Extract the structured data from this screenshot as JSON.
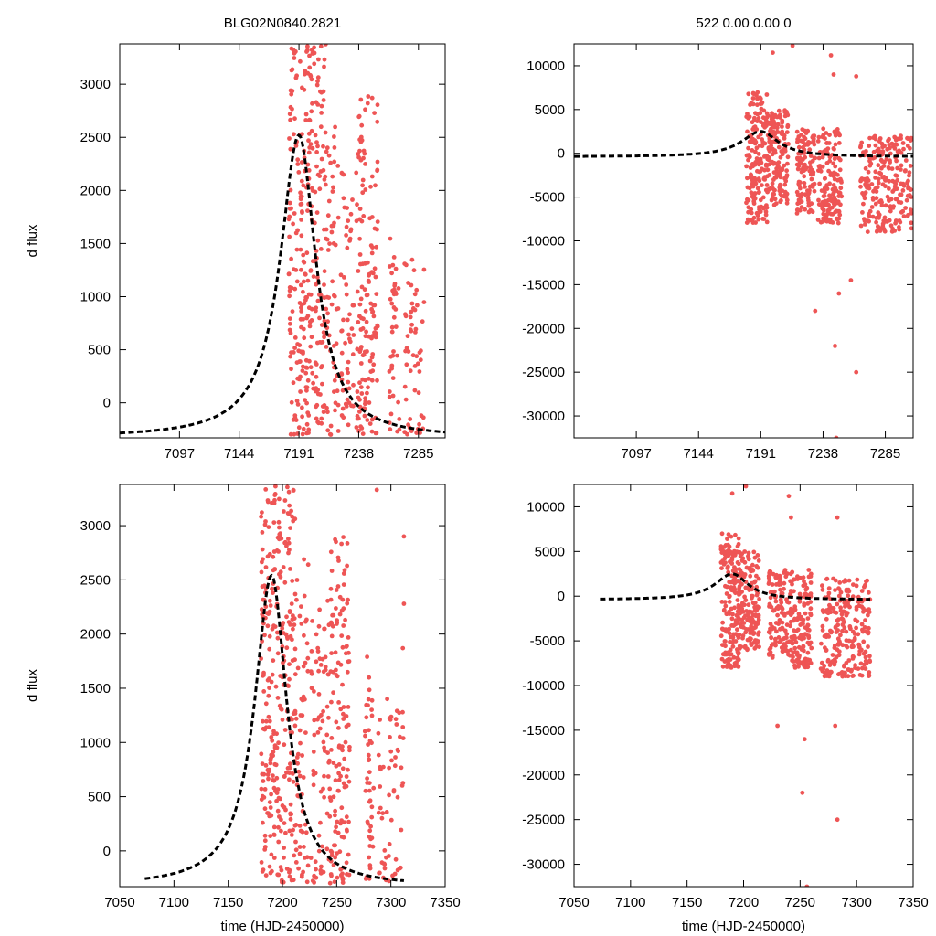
{
  "chart_data": [
    {
      "type": "scatter",
      "title": "BLG02N0840.2821",
      "xlabel": "",
      "ylabel": "d flux",
      "xlim": [
        7050,
        7306
      ],
      "ylim": [
        -330,
        3380
      ],
      "xticks": [
        "7097",
        "7144",
        "7191",
        "7238",
        "7285"
      ],
      "yticks": [
        "0",
        "500",
        "1000",
        "1500",
        "2000",
        "2500",
        "3000"
      ],
      "series": [
        {
          "name": "data",
          "kind": "points",
          "clusters": [
            {
              "x0": 7183,
              "x1": 7198,
              "y0": -300,
              "y1": 3380,
              "n": 160
            },
            {
              "x0": 7198,
              "x1": 7212,
              "y0": -300,
              "y1": 3380,
              "n": 140
            },
            {
              "x0": 7212,
              "x1": 7222,
              "y0": -300,
              "y1": 2600,
              "n": 60
            },
            {
              "x0": 7224,
              "x1": 7234,
              "y0": -300,
              "y1": 2200,
              "n": 55
            },
            {
              "x0": 7236,
              "x1": 7253,
              "y0": -300,
              "y1": 2900,
              "n": 150
            },
            {
              "x0": 7262,
              "x1": 7270,
              "y0": -300,
              "y1": 1800,
              "n": 40
            },
            {
              "x0": 7274,
              "x1": 7290,
              "y0": -300,
              "y1": 1450,
              "n": 55
            }
          ]
        },
        {
          "name": "model",
          "kind": "line",
          "peak_x": 7191,
          "peak_y": 2520,
          "base_y": -330,
          "rise_width": 18,
          "fall_width": 16
        }
      ]
    },
    {
      "type": "scatter",
      "title": "522  0.00  0.00  0",
      "xlabel": "",
      "ylabel": "",
      "xlim": [
        7050,
        7306
      ],
      "ylim": [
        -32500,
        12500
      ],
      "xticks": [
        "7097",
        "7144",
        "7191",
        "7238",
        "7285"
      ],
      "yticks": [
        "10000",
        "5000",
        "0",
        "-5000",
        "-10000",
        "-15000",
        "-20000",
        "-25000",
        "-30000"
      ],
      "series": [
        {
          "name": "data",
          "kind": "points",
          "clusters": [
            {
              "x0": 7180,
              "x1": 7196,
              "y0": -8000,
              "y1": 7000,
              "n": 170
            },
            {
              "x0": 7196,
              "x1": 7212,
              "y0": -6000,
              "y1": 5000,
              "n": 150
            },
            {
              "x0": 7218,
              "x1": 7232,
              "y0": -7000,
              "y1": 3000,
              "n": 110
            },
            {
              "x0": 7234,
              "x1": 7252,
              "y0": -8000,
              "y1": 3000,
              "n": 150
            },
            {
              "x0": 7266,
              "x1": 7306,
              "y0": -9000,
              "y1": 2000,
              "n": 230
            }
          ]
        },
        {
          "name": "outliers",
          "kind": "points",
          "points": [
            [
              7200,
              11500
            ],
            [
              7215,
              12300
            ],
            [
              7244,
              11200
            ],
            [
              7246,
              9000
            ],
            [
              7263,
              8800
            ],
            [
              7232,
              -18000
            ],
            [
              7247,
              -22000
            ],
            [
              7250,
              -16000
            ],
            [
              7248,
              -32500
            ],
            [
              7263,
              -25000
            ],
            [
              7259,
              -14500
            ]
          ]
        },
        {
          "name": "model",
          "kind": "line",
          "peak_x": 7191,
          "peak_y": 2500,
          "base_y": -400,
          "rise_width": 18,
          "fall_width": 16
        }
      ]
    },
    {
      "type": "scatter",
      "title": "",
      "xlabel": "time (HJD-2450000)",
      "ylabel": "d flux",
      "xlim": [
        7050,
        7350
      ],
      "ylim": [
        -330,
        3380
      ],
      "xticks": [
        "7050",
        "7100",
        "7150",
        "7200",
        "7250",
        "7300",
        "7350"
      ],
      "yticks": [
        "0",
        "500",
        "1000",
        "1500",
        "2000",
        "2500",
        "3000"
      ],
      "series": [
        {
          "name": "data",
          "kind": "points",
          "clusters": [
            {
              "x0": 7180,
              "x1": 7196,
              "y0": -300,
              "y1": 3380,
              "n": 160
            },
            {
              "x0": 7196,
              "x1": 7212,
              "y0": -300,
              "y1": 3380,
              "n": 140
            },
            {
              "x0": 7212,
              "x1": 7224,
              "y0": -300,
              "y1": 2700,
              "n": 60
            },
            {
              "x0": 7226,
              "x1": 7240,
              "y0": -300,
              "y1": 2300,
              "n": 60
            },
            {
              "x0": 7241,
              "x1": 7262,
              "y0": -300,
              "y1": 2900,
              "n": 160
            },
            {
              "x0": 7276,
              "x1": 7284,
              "y0": -300,
              "y1": 1800,
              "n": 45
            },
            {
              "x0": 7288,
              "x1": 7312,
              "y0": -300,
              "y1": 1450,
              "n": 60
            }
          ]
        },
        {
          "name": "outliers",
          "kind": "points",
          "points": [
            [
              7287,
              3330
            ],
            [
              7312,
              2900
            ],
            [
              7312,
              2280
            ],
            [
              7311,
              1870
            ]
          ]
        },
        {
          "name": "model",
          "kind": "line",
          "peak_x": 7190,
          "peak_y": 2540,
          "base_y": -330,
          "rise_width": 19,
          "fall_width": 17,
          "x_start": 7073,
          "x_end": 7312
        }
      ]
    },
    {
      "type": "scatter",
      "title": "",
      "xlabel": "time (HJD-2450000)",
      "ylabel": "",
      "xlim": [
        7050,
        7350
      ],
      "ylim": [
        -32500,
        12500
      ],
      "xticks": [
        "7050",
        "7100",
        "7150",
        "7200",
        "7250",
        "7300",
        "7350"
      ],
      "yticks": [
        "10000",
        "5000",
        "0",
        "-5000",
        "-10000",
        "-15000",
        "-20000",
        "-25000",
        "-30000"
      ],
      "series": [
        {
          "name": "data",
          "kind": "points",
          "clusters": [
            {
              "x0": 7180,
              "x1": 7196,
              "y0": -8000,
              "y1": 7000,
              "n": 170
            },
            {
              "x0": 7196,
              "x1": 7214,
              "y0": -6000,
              "y1": 5000,
              "n": 150
            },
            {
              "x0": 7222,
              "x1": 7240,
              "y0": -7000,
              "y1": 3000,
              "n": 110
            },
            {
              "x0": 7240,
              "x1": 7260,
              "y0": -8000,
              "y1": 3000,
              "n": 150
            },
            {
              "x0": 7268,
              "x1": 7312,
              "y0": -9000,
              "y1": 2000,
              "n": 230
            }
          ]
        },
        {
          "name": "outliers",
          "kind": "points",
          "points": [
            [
              7190,
              11500
            ],
            [
              7202,
              12300
            ],
            [
              7240,
              11200
            ],
            [
              7242,
              8800
            ],
            [
              7283,
              8800
            ],
            [
              7230,
              -14500
            ],
            [
              7252,
              -22000
            ],
            [
              7254,
              -16000
            ],
            [
              7256,
              -32500
            ],
            [
              7283,
              -25000
            ],
            [
              7281,
              -14500
            ]
          ]
        },
        {
          "name": "model",
          "kind": "line",
          "peak_x": 7190,
          "peak_y": 2500,
          "base_y": -400,
          "rise_width": 19,
          "fall_width": 17,
          "x_start": 7073,
          "x_end": 7312
        }
      ]
    }
  ]
}
